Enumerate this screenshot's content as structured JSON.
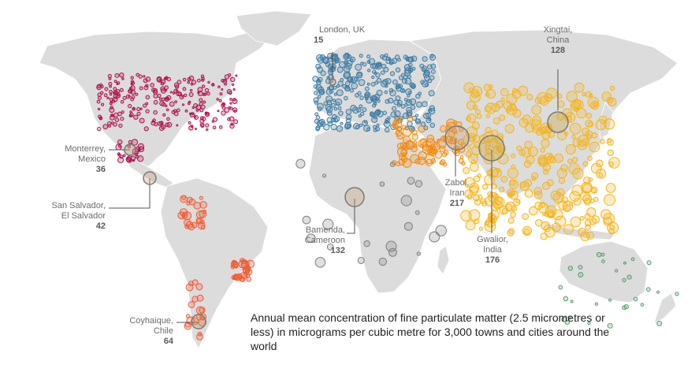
{
  "caption": "Annual mean concentration of fine particulate matter (2.5 micrometres or less) in micrograms per cubic metre for 3,000 towns and cities around the world",
  "colors": {
    "land": "#dcdcdc",
    "north_america": "#b0134e",
    "latin_america": "#ef5a35",
    "europe": "#3f7ca3",
    "middle_east": "#f28a12",
    "asia": "#f5b41d",
    "africa": "#7f7f7f",
    "oceania": "#5d9e70",
    "leader": "#555555"
  },
  "callouts": [
    {
      "id": "london",
      "name": "London, UK",
      "value": "15"
    },
    {
      "id": "xingtai",
      "name": "Xingtai, China",
      "value": "128"
    },
    {
      "id": "monterrey",
      "name": "Monterrey, Mexico",
      "value": "36"
    },
    {
      "id": "sansalvador",
      "name": "San Salvador, El Salvador",
      "value": "42"
    },
    {
      "id": "zabol",
      "name": "Zabol, Iran",
      "value": "217"
    },
    {
      "id": "bamenda",
      "name": "Bamenda, Cameroon",
      "value": "132"
    },
    {
      "id": "gwalior",
      "name": "Gwalior, India",
      "value": "176"
    },
    {
      "id": "coyhaique",
      "name": "Coyhaique, Chile",
      "value": "64"
    }
  ]
}
